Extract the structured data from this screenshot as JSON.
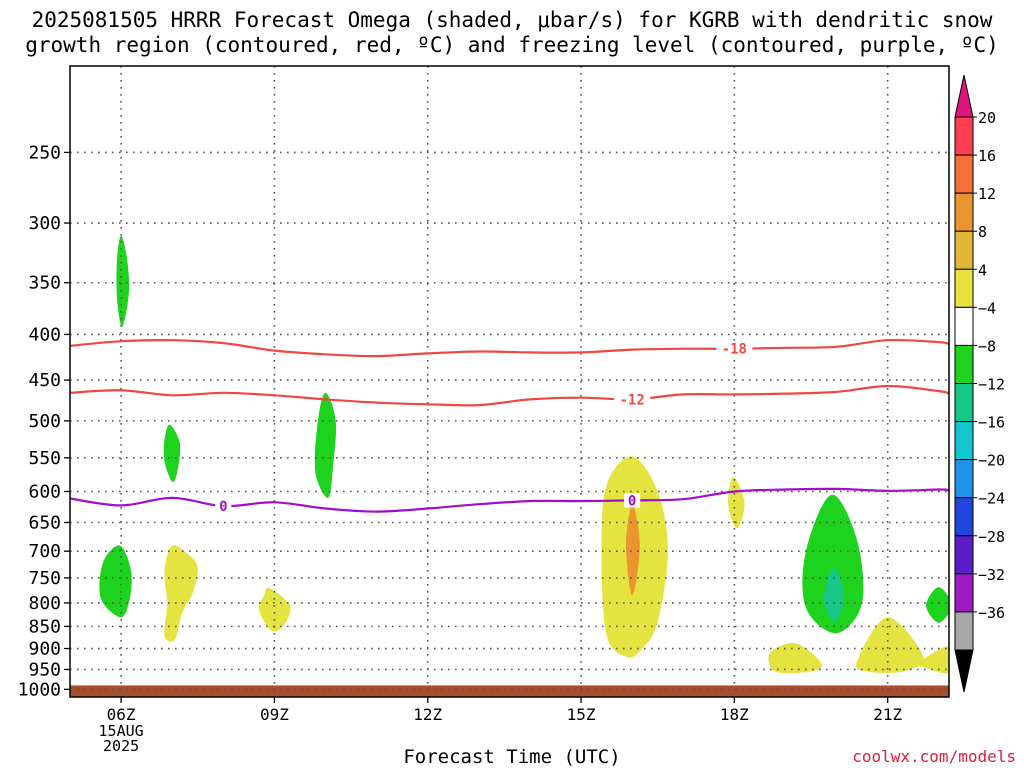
{
  "title": {
    "line1": "2025081505 HRRR Forecast Omega (shaded, μbar/s) for KGRB with dendritic snow",
    "line2": "growth region (contoured, red, ºC) and freezing level (contoured, purple, ºC)"
  },
  "xlabel": "Forecast Time (UTC)",
  "credit": "coolwx.com/models",
  "chart_data": {
    "type": "heatmap",
    "x_unit": "forecast hour, 2025-08-15 UTC",
    "xlim": [
      5,
      22.2
    ],
    "ylim_hPa": [
      1020,
      200
    ],
    "y_scale": "log",
    "grid": true,
    "x_ticks": [
      {
        "x": 6,
        "label": "06Z",
        "sub": [
          "15AUG",
          "2025"
        ]
      },
      {
        "x": 9,
        "label": "09Z"
      },
      {
        "x": 12,
        "label": "12Z"
      },
      {
        "x": 15,
        "label": "15Z"
      },
      {
        "x": 18,
        "label": "18Z"
      },
      {
        "x": 21,
        "label": "21Z"
      }
    ],
    "y_ticks": [
      250,
      300,
      350,
      400,
      450,
      500,
      550,
      600,
      650,
      700,
      750,
      800,
      850,
      900,
      950,
      1000
    ],
    "colorbar": {
      "labels": [
        "20",
        "16",
        "12",
        "8",
        "4",
        "−4",
        "−8",
        "−12",
        "−16",
        "−20",
        "−24",
        "−28",
        "−32",
        "−36"
      ],
      "colors": [
        "#ff3f53",
        "#f57038",
        "#eb9531",
        "#e2b737",
        "#e5e33f",
        "#ffffff",
        "#1dd31d",
        "#17c788",
        "#13c6cf",
        "#1f93ea",
        "#2245de",
        "#5b1dc7",
        "#9f1bc5",
        "#a8a8a8"
      ],
      "top_color": "#e0147f",
      "bottom_color": "#000000"
    },
    "omega_areas": [
      {
        "color": "#1dd31d",
        "points": [
          [
            6.0,
            310
          ],
          [
            6.12,
            330
          ],
          [
            6.15,
            360
          ],
          [
            6.02,
            392
          ],
          [
            5.92,
            365
          ],
          [
            5.92,
            330
          ]
        ]
      },
      {
        "color": "#1dd31d",
        "points": [
          [
            6.95,
            505
          ],
          [
            7.15,
            530
          ],
          [
            7.1,
            570
          ],
          [
            7.0,
            585
          ],
          [
            6.85,
            555
          ],
          [
            6.85,
            525
          ]
        ]
      },
      {
        "color": "#1dd31d",
        "points": [
          [
            10.0,
            465
          ],
          [
            10.2,
            500
          ],
          [
            10.15,
            560
          ],
          [
            10.05,
            610
          ],
          [
            9.8,
            570
          ],
          [
            9.85,
            500
          ]
        ]
      },
      {
        "color": "#1dd31d",
        "points": [
          [
            5.98,
            690
          ],
          [
            6.2,
            740
          ],
          [
            6.15,
            800
          ],
          [
            5.98,
            830
          ],
          [
            5.6,
            790
          ],
          [
            5.65,
            720
          ]
        ]
      },
      {
        "color": "#e5e33f",
        "points": [
          [
            7.0,
            690
          ],
          [
            7.3,
            705
          ],
          [
            7.5,
            730
          ],
          [
            7.4,
            780
          ],
          [
            7.2,
            820
          ],
          [
            7.05,
            880
          ],
          [
            6.85,
            870
          ],
          [
            6.9,
            800
          ],
          [
            6.85,
            735
          ]
        ]
      },
      {
        "color": "#e5e33f",
        "points": [
          [
            8.9,
            770
          ],
          [
            9.3,
            805
          ],
          [
            9.2,
            845
          ],
          [
            8.95,
            860
          ],
          [
            8.7,
            815
          ],
          [
            8.8,
            785
          ]
        ]
      },
      {
        "color": "#e5e33f",
        "points": [
          [
            16.0,
            548
          ],
          [
            16.5,
            600
          ],
          [
            16.7,
            700
          ],
          [
            16.5,
            840
          ],
          [
            16.2,
            900
          ],
          [
            15.9,
            920
          ],
          [
            15.5,
            870
          ],
          [
            15.4,
            700
          ],
          [
            15.5,
            590
          ]
        ]
      },
      {
        "color": "#eb9531",
        "points": [
          [
            16.0,
            620
          ],
          [
            16.15,
            690
          ],
          [
            16.0,
            785
          ],
          [
            15.88,
            690
          ]
        ]
      },
      {
        "color": "#e5e33f",
        "points": [
          [
            17.98,
            578
          ],
          [
            18.2,
            618
          ],
          [
            18.05,
            660
          ],
          [
            17.88,
            620
          ]
        ]
      },
      {
        "color": "#1dd31d",
        "points": [
          [
            19.9,
            605
          ],
          [
            20.4,
            680
          ],
          [
            20.5,
            800
          ],
          [
            20.0,
            865
          ],
          [
            19.4,
            810
          ],
          [
            19.4,
            700
          ]
        ]
      },
      {
        "color": "#17c788",
        "points": [
          [
            19.95,
            730
          ],
          [
            20.15,
            790
          ],
          [
            19.95,
            840
          ],
          [
            19.75,
            790
          ]
        ]
      },
      {
        "color": "#1dd31d",
        "points": [
          [
            22.0,
            768
          ],
          [
            22.25,
            805
          ],
          [
            22.0,
            842
          ],
          [
            21.75,
            805
          ]
        ]
      },
      {
        "color": "#e5e33f",
        "points": [
          [
            19.2,
            888
          ],
          [
            19.7,
            935
          ],
          [
            19.5,
            955
          ],
          [
            18.8,
            955
          ],
          [
            18.7,
            910
          ]
        ]
      },
      {
        "color": "#e5e33f",
        "points": [
          [
            21.0,
            830
          ],
          [
            21.7,
            920
          ],
          [
            21.3,
            955
          ],
          [
            20.6,
            955
          ],
          [
            20.4,
            930
          ]
        ]
      },
      {
        "color": "#e5e33f",
        "points": [
          [
            22.2,
            895
          ],
          [
            22.2,
            957
          ],
          [
            21.8,
            948
          ],
          [
            21.6,
            935
          ]
        ]
      }
    ],
    "contours": [
      {
        "label": "-18",
        "color": "#f04840",
        "label_x": 18.0,
        "points": [
          [
            5,
            412
          ],
          [
            6,
            407
          ],
          [
            7,
            406
          ],
          [
            8,
            409
          ],
          [
            9,
            417
          ],
          [
            10,
            421
          ],
          [
            11,
            423
          ],
          [
            12,
            420
          ],
          [
            13,
            418
          ],
          [
            14,
            419
          ],
          [
            15,
            419
          ],
          [
            16,
            416
          ],
          [
            17,
            415
          ],
          [
            18,
            415
          ],
          [
            19,
            414
          ],
          [
            20,
            413
          ],
          [
            21,
            406
          ],
          [
            22,
            408
          ],
          [
            22.2,
            410
          ]
        ]
      },
      {
        "label": "-12",
        "color": "#f04840",
        "label_x": 16.0,
        "points": [
          [
            5,
            465
          ],
          [
            6,
            462
          ],
          [
            7,
            468
          ],
          [
            8,
            465
          ],
          [
            9,
            468
          ],
          [
            10,
            473
          ],
          [
            11,
            477
          ],
          [
            12,
            479
          ],
          [
            13,
            480
          ],
          [
            14,
            473
          ],
          [
            15,
            471
          ],
          [
            16,
            473
          ],
          [
            17,
            467
          ],
          [
            18,
            467
          ],
          [
            19,
            466
          ],
          [
            20,
            464
          ],
          [
            21,
            457
          ],
          [
            22,
            463
          ],
          [
            22.2,
            466
          ]
        ]
      },
      {
        "label": "0",
        "color": "#a010cc",
        "label_x": 8.0,
        "points": [
          [
            5,
            611
          ],
          [
            6,
            622
          ],
          [
            7,
            610
          ],
          [
            8,
            623
          ],
          [
            9,
            617
          ],
          [
            10,
            627
          ],
          [
            11,
            632
          ],
          [
            12,
            627
          ],
          [
            13,
            620
          ],
          [
            14,
            615
          ],
          [
            15,
            615
          ],
          [
            16,
            614
          ],
          [
            17,
            612
          ],
          [
            18,
            600
          ],
          [
            19,
            597
          ],
          [
            20,
            596
          ],
          [
            21,
            599
          ],
          [
            22,
            597
          ],
          [
            22.2,
            598
          ]
        ]
      },
      {
        "label": "0",
        "color": "#a010cc",
        "label_x": 16.0,
        "points": []
      }
    ],
    "terrain": {
      "from_hPa": 990,
      "color": "#a64e2d"
    }
  }
}
